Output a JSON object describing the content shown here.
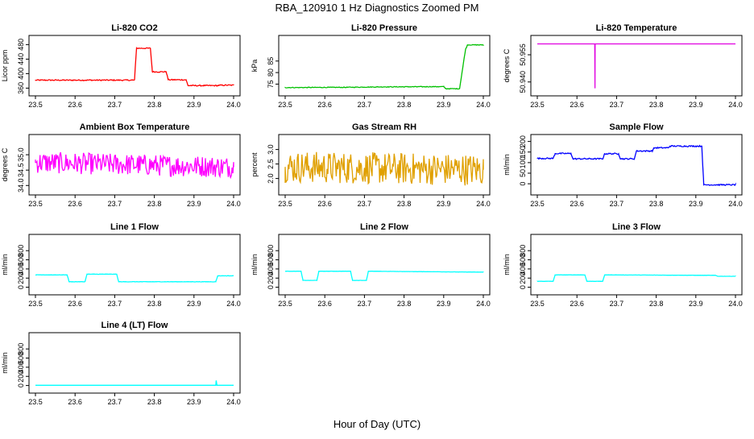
{
  "title": "RBA_120910  1 Hz Diagnostics Zoomed PM",
  "xlabel": "Hour of Day (UTC)",
  "chart_data": [
    {
      "type": "line",
      "title": "Li-820 CO2",
      "ylabel": "Licor ppm",
      "color": "#ff0000",
      "xlim": [
        23.5,
        24.0
      ],
      "ylim": [
        352,
        492
      ],
      "x_ticks": [
        "23.5",
        "23.6",
        "23.7",
        "23.8",
        "23.9",
        "24.0"
      ],
      "y_ticks": [
        360,
        400,
        440,
        480
      ],
      "y_tick_labels": [
        "360",
        "400",
        "440",
        "480"
      ],
      "series": [
        {
          "x": [
            23.5,
            23.75,
            23.755,
            23.79,
            23.795,
            23.83,
            23.835,
            23.88,
            23.885,
            23.96,
            23.965,
            24.0
          ],
          "values": [
            382,
            382,
            470,
            470,
            405,
            405,
            383,
            383,
            367,
            367,
            368,
            368
          ]
        }
      ],
      "noise": 1.5
    },
    {
      "type": "line",
      "title": "Li-820 Pressure",
      "ylabel": "kPa",
      "color": "#00c000",
      "xlim": [
        23.5,
        24.0
      ],
      "ylim": [
        72,
        94
      ],
      "x_ticks": [
        "23.5",
        "23.6",
        "23.7",
        "23.8",
        "23.9",
        "24.0"
      ],
      "y_ticks": [
        75,
        80,
        85
      ],
      "y_tick_labels": [
        "75",
        "80",
        "85"
      ],
      "series": [
        {
          "x": [
            23.5,
            23.65,
            23.75,
            23.9,
            23.905,
            23.94,
            23.955,
            23.96,
            24.0
          ],
          "values": [
            73.5,
            73.6,
            73.8,
            73.9,
            73.0,
            73.0,
            90,
            92,
            92
          ]
        }
      ],
      "noise": 0.15
    },
    {
      "type": "line",
      "title": "Li-820 Temperature",
      "ylabel": "degrees C",
      "color": "#e000e0",
      "xlim": [
        23.5,
        24.0
      ],
      "ylim": [
        50.935,
        50.963
      ],
      "x_ticks": [
        "23.5",
        "23.6",
        "23.7",
        "23.8",
        "23.9",
        "24.0"
      ],
      "y_ticks": [
        50.94,
        50.955
      ],
      "y_tick_labels": [
        "50.940",
        "50.955"
      ],
      "series": [
        {
          "x": [
            23.5,
            23.645,
            23.6455,
            23.646,
            24.0
          ],
          "values": [
            50.961,
            50.961,
            50.9365,
            50.961,
            50.961
          ]
        }
      ],
      "noise": 0
    },
    {
      "type": "line",
      "title": "Ambient Box Temperature",
      "ylabel": "degrees C",
      "color": "#ff00ff",
      "xlim": [
        23.5,
        24.0
      ],
      "ylim": [
        33.85,
        35.5
      ],
      "x_ticks": [
        "23.5",
        "23.6",
        "23.7",
        "23.8",
        "23.9",
        "24.0"
      ],
      "y_ticks": [
        34.0,
        34.5,
        35.0
      ],
      "y_tick_labels": [
        "34.0",
        "34.5",
        "35.0"
      ],
      "series": [
        {
          "x": [
            23.5,
            24.0
          ],
          "values": [
            34.75,
            34.6
          ]
        }
      ],
      "noise": 0.35
    },
    {
      "type": "line",
      "title": "Gas Stream RH",
      "ylabel": "percent",
      "color": "#e0a000",
      "xlim": [
        23.5,
        24.0
      ],
      "ylim": [
        1.6,
        3.35
      ],
      "x_ticks": [
        "23.5",
        "23.6",
        "23.7",
        "23.8",
        "23.9",
        "24.0"
      ],
      "y_ticks": [
        2.0,
        2.5,
        3.0
      ],
      "y_tick_labels": [
        "2.0",
        "2.5",
        "3.0"
      ],
      "series": [
        {
          "x": [
            23.5,
            24.0
          ],
          "values": [
            2.4,
            2.3
          ]
        }
      ],
      "noise": 0.55
    },
    {
      "type": "line",
      "title": "Sample Flow",
      "ylabel": "ml/min",
      "color": "#0000ff",
      "xlim": [
        23.5,
        24.0
      ],
      "ylim": [
        -30,
        210
      ],
      "x_ticks": [
        "23.5",
        "23.6",
        "23.7",
        "23.8",
        "23.9",
        "24.0"
      ],
      "y_ticks": [
        0,
        50,
        100,
        150,
        200
      ],
      "y_tick_labels": [
        "0",
        "50",
        "100",
        "150",
        "200"
      ],
      "series": [
        {
          "x": [
            23.5,
            23.54,
            23.545,
            23.585,
            23.59,
            23.665,
            23.67,
            23.705,
            23.71,
            23.745,
            23.75,
            23.79,
            23.795,
            23.83,
            23.835,
            23.915,
            23.92,
            24.0
          ],
          "values": [
            120,
            120,
            143,
            143,
            118,
            118,
            142,
            142,
            118,
            118,
            155,
            155,
            170,
            170,
            178,
            178,
            -5,
            -5
          ]
        }
      ],
      "noise": 3
    },
    {
      "type": "line",
      "title": "Line 1 Flow",
      "ylabel": "ml/min",
      "color": "#00ffff",
      "xlim": [
        23.5,
        24.0
      ],
      "ylim": [
        -60,
        1050
      ],
      "x_ticks": [
        "23.5",
        "23.6",
        "23.7",
        "23.8",
        "23.9",
        "24.0"
      ],
      "y_ticks": [
        0,
        200,
        400,
        600,
        800
      ],
      "y_tick_labels": [
        "0",
        "200",
        "400",
        "600",
        "800"
      ],
      "series": [
        {
          "x": [
            23.5,
            23.58,
            23.585,
            23.625,
            23.63,
            23.705,
            23.71,
            23.955,
            23.96,
            24.0
          ],
          "values": [
            270,
            270,
            120,
            120,
            285,
            285,
            120,
            120,
            250,
            250
          ]
        }
      ],
      "noise": 4
    },
    {
      "type": "line",
      "title": "Line 2 Flow",
      "ylabel": "ml/min",
      "color": "#00ffff",
      "xlim": [
        23.5,
        24.0
      ],
      "ylim": [
        -60,
        1050
      ],
      "x_ticks": [
        "23.5",
        "23.6",
        "23.7",
        "23.8",
        "23.9",
        "24.0"
      ],
      "y_ticks": [
        0,
        200,
        400,
        600,
        800
      ],
      "y_tick_labels": [
        "0",
        "200",
        "400",
        "600",
        "800"
      ],
      "series": [
        {
          "x": [
            23.5,
            23.54,
            23.545,
            23.58,
            23.585,
            23.665,
            23.67,
            23.705,
            23.71,
            24.0
          ],
          "values": [
            350,
            350,
            150,
            150,
            350,
            350,
            150,
            150,
            350,
            330
          ]
        }
      ],
      "noise": 2
    },
    {
      "type": "line",
      "title": "Line 3 Flow",
      "ylabel": "ml/min",
      "color": "#00ffff",
      "xlim": [
        23.5,
        24.0
      ],
      "ylim": [
        -60,
        1050
      ],
      "x_ticks": [
        "23.5",
        "23.6",
        "23.7",
        "23.8",
        "23.9",
        "24.0"
      ],
      "y_ticks": [
        0,
        200,
        400,
        600,
        800
      ],
      "y_tick_labels": [
        "0",
        "200",
        "400",
        "600",
        "800"
      ],
      "series": [
        {
          "x": [
            23.5,
            23.54,
            23.545,
            23.62,
            23.625,
            23.665,
            23.67,
            23.95,
            23.955,
            24.0
          ],
          "values": [
            130,
            130,
            270,
            270,
            130,
            130,
            270,
            260,
            240,
            240
          ]
        }
      ],
      "noise": 2
    },
    {
      "type": "line",
      "title": "Line 4 (LT) Flow",
      "ylabel": "ml/min",
      "color": "#00ffff",
      "xlim": [
        23.5,
        24.0
      ],
      "ylim": [
        -60,
        1050
      ],
      "x_ticks": [
        "23.5",
        "23.6",
        "23.7",
        "23.8",
        "23.9",
        "24.0"
      ],
      "y_ticks": [
        0,
        200,
        400,
        600,
        800
      ],
      "y_tick_labels": [
        "0",
        "200",
        "400",
        "600",
        "800"
      ],
      "series": [
        {
          "x": [
            23.5,
            23.955,
            23.956,
            23.958,
            23.96,
            24.0
          ],
          "values": [
            5,
            5,
            110,
            5,
            5,
            5
          ]
        }
      ],
      "noise": 0.5
    }
  ]
}
